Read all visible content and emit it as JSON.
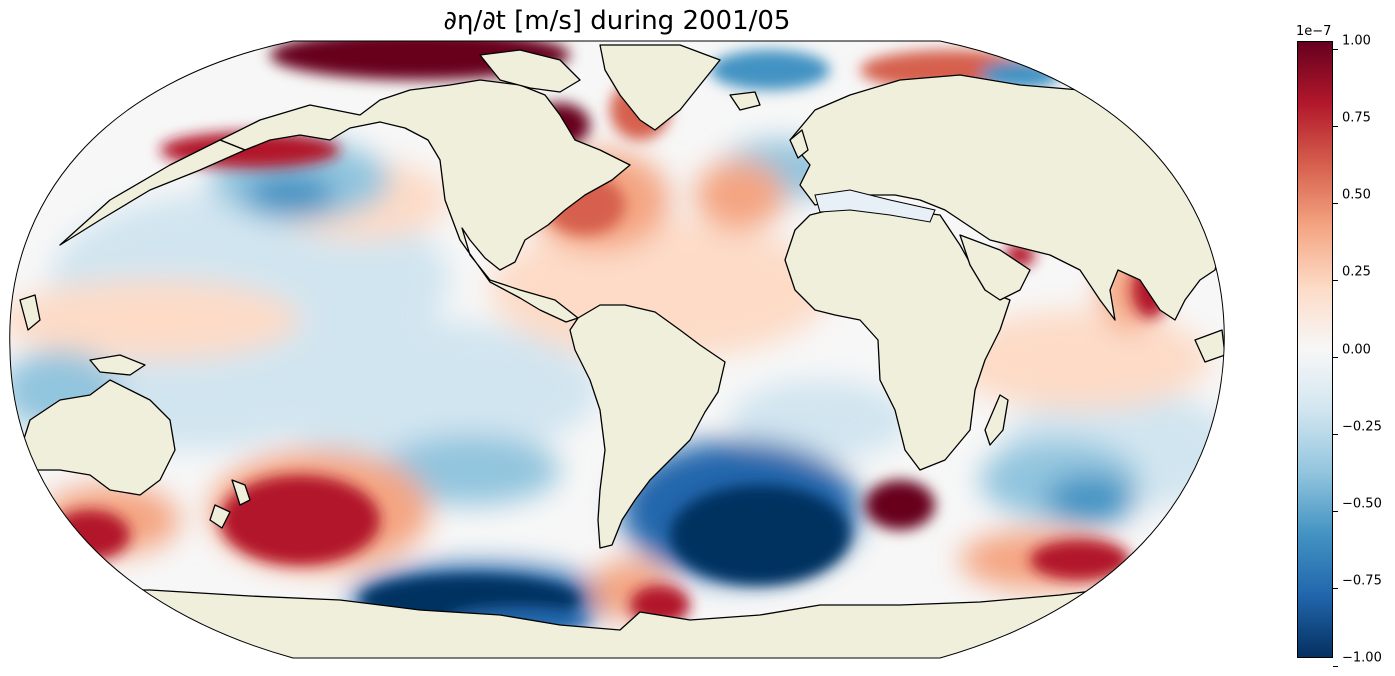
{
  "title": "∂η/∂t [m/s] during 2001/05",
  "colorbar": {
    "exponent_label": "1e−7",
    "ticks": [
      "1.00",
      "0.75",
      "0.50",
      "0.25",
      "0.00",
      "−0.25",
      "−0.50",
      "−0.75",
      "−1.00"
    ],
    "range": [
      -1.0,
      1.0
    ],
    "colormap": "RdBu_r",
    "colors": [
      "#053061",
      "#2166ac",
      "#4393c3",
      "#92c5de",
      "#d1e5f0",
      "#f7f7f7",
      "#fddbc7",
      "#f4a582",
      "#d6604d",
      "#b2182b",
      "#67001f"
    ]
  },
  "map": {
    "projection": "Robinson",
    "land_color": "#efefdb",
    "coastline_color": "#000000"
  }
}
